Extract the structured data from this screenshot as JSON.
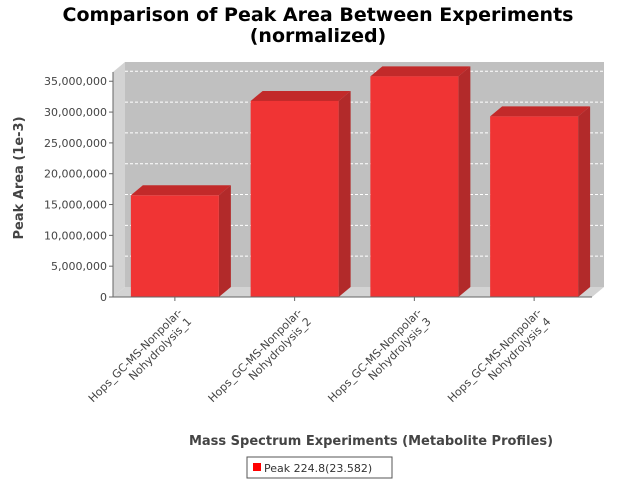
{
  "chart_data": {
    "type": "bar",
    "title_line1": "Comparison of Peak Area Between Experiments",
    "title_line2": "(normalized)",
    "xlabel": "Mass Spectrum Experiments (Metabolite Profiles)",
    "ylabel": "Peak Area (1e-3)",
    "categories": [
      [
        "Hops_GC-MS-Nonpolar-",
        "Nohydrolysis_1"
      ],
      [
        "Hops_GC-MS-Nonpolar-",
        "Nohydrolysis_2"
      ],
      [
        "Hops_GC-MS-Nonpolar-",
        "Nohydrolysis_3"
      ],
      [
        "Hops_GC-MS-Nonpolar-",
        "Nohydrolysis_4"
      ]
    ],
    "series": [
      {
        "name": "Peak 224.8(23.582)",
        "values": [
          16500000,
          31800000,
          35800000,
          29300000
        ]
      }
    ],
    "ylim": [
      0,
      36500000
    ],
    "yticks": [
      0,
      5000000,
      10000000,
      15000000,
      20000000,
      25000000,
      30000000,
      35000000
    ],
    "ytick_labels": [
      "0",
      "5,000,000",
      "10,000,000",
      "15,000,000",
      "20,000,000",
      "25,000,000",
      "30,000,000",
      "35,000,000"
    ],
    "grid": true,
    "legend_position": "bottom",
    "colors": {
      "bar_front": "#f03434",
      "bar_side": "#b22a2a",
      "bar_top": "#c22a2a",
      "plot_back": "#c0c0c0",
      "plot_floor": "#d3d3d3",
      "grid": "#ffffff"
    }
  }
}
